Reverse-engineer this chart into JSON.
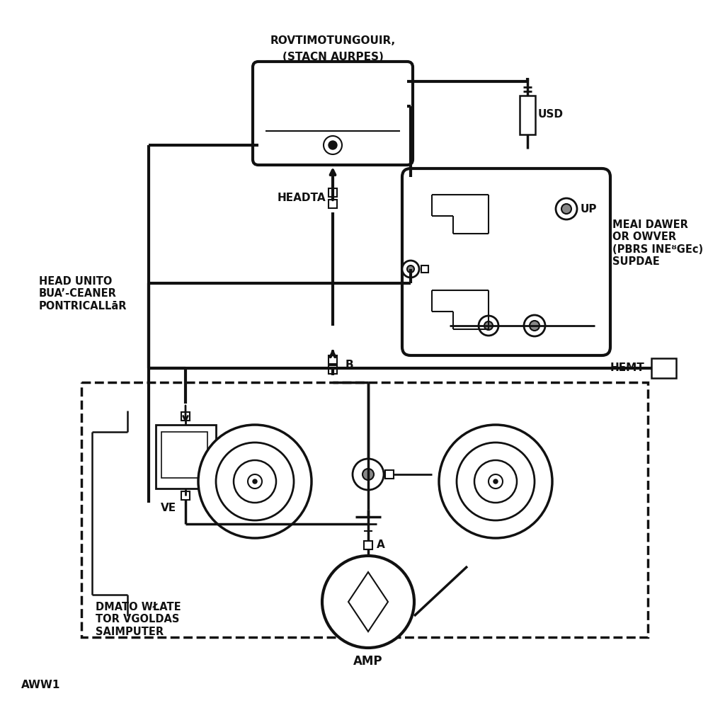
{
  "bg_color": "#ffffff",
  "line_color": "#111111",
  "title_top": "ROVTIMOTUNGOUIR,",
  "title_top2": "(STACN AURPES)",
  "label_headunit": "HEAD UNITO\nBUA’-CEANER\nPONTRICALLāR",
  "label_headta": "HEADTA",
  "label_usd": "USD",
  "label_up": "UP",
  "label_meai": "MEAI DAWER\nOR OWVER\n(PBRS INEᴽGEᴄ)\nSUPDAE",
  "label_b": "B",
  "label_hemt": "HEMT",
  "label_ve": "VE",
  "label_a": "A",
  "label_amp": "AMP",
  "label_dmato": "DMATO WŁATE\nTOR VGOLDAS\nSAIMPUTER",
  "label_aww1": "AWW1"
}
